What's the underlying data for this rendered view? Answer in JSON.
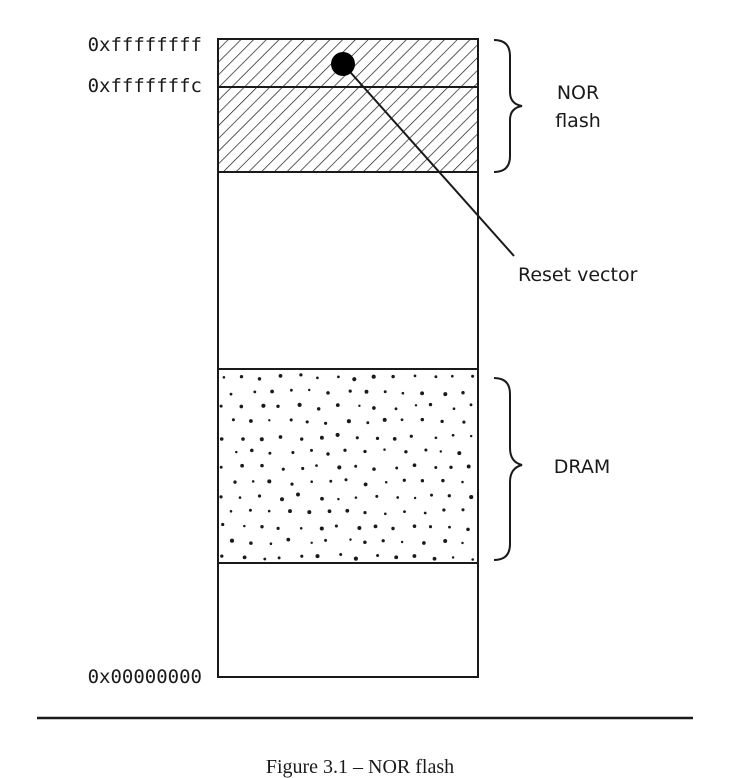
{
  "addresses": {
    "top": "0xffffffff",
    "reset": "0xfffffffc",
    "bottom": "0x00000000"
  },
  "regions": {
    "nor_flash": {
      "label_line1": "NOR",
      "label_line2": "flash"
    },
    "dram": {
      "label": "DRAM"
    }
  },
  "annotations": {
    "reset_vector": "Reset vector"
  },
  "caption": "Figure 3.1 – NOR flash",
  "colors": {
    "stroke": "#1a1a1a",
    "background": "#ffffff"
  }
}
